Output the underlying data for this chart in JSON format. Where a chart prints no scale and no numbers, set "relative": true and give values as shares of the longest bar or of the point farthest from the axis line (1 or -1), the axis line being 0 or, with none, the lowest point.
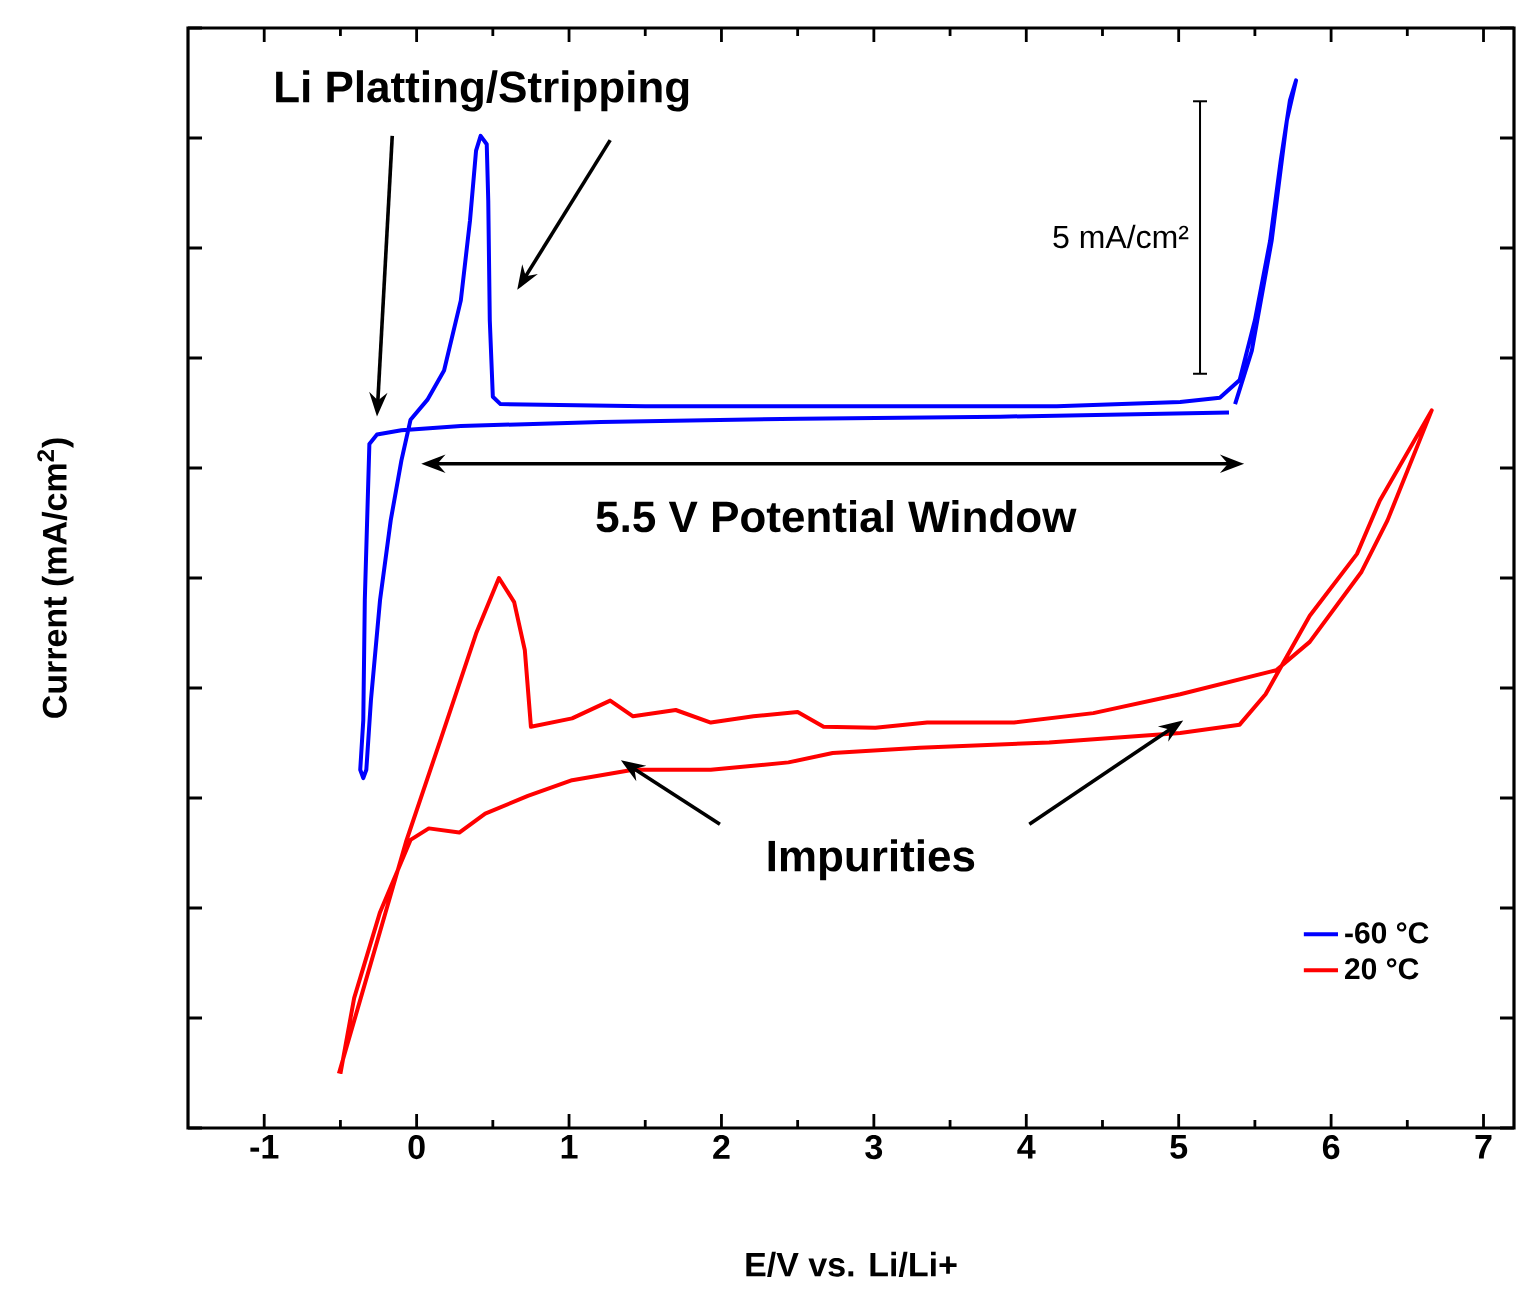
{
  "chart_data": {
    "type": "line",
    "xlabel": "E/V vs. Li/Li+",
    "ylabel": "Current (mA/cm$^{2}$)",
    "relative": true,
    "xlim": [
      -1.5,
      7.2
    ],
    "xticks": [
      -1,
      0,
      1,
      2,
      3,
      4,
      5,
      6,
      7
    ],
    "legend": "bottom right",
    "annotations": [
      "Li Platting/Stripping",
      "5 mA/cm²",
      "5.5 V Potential Window",
      "Impurities"
    ],
    "series": [
      {
        "name": "-60 °C",
        "color": "#0000ff",
        "x": [
          5.33,
          3.83,
          2.52,
          1.21,
          0.29,
          -0.1,
          -0.26,
          -0.31,
          -0.34,
          -0.35,
          -0.37,
          -0.35,
          -0.33,
          -0.3,
          -0.24,
          -0.17,
          -0.1,
          -0.04,
          0.07,
          0.18,
          0.29,
          0.35,
          0.39,
          0.42,
          0.46,
          0.47,
          0.48,
          0.5,
          0.55,
          1.5,
          3.0,
          4.2,
          5.01,
          5.27,
          5.4,
          5.5,
          5.6,
          5.67,
          5.73,
          5.77,
          5.71,
          5.61,
          5.48,
          5.37
        ],
        "values": [
          0.683,
          0.679,
          0.677,
          0.674,
          0.67,
          0.666,
          0.662,
          0.653,
          0.504,
          0.389,
          0.342,
          0.334,
          0.342,
          0.408,
          0.504,
          0.58,
          0.637,
          0.676,
          0.695,
          0.723,
          0.79,
          0.866,
          0.933,
          0.947,
          0.939,
          0.885,
          0.771,
          0.698,
          0.691,
          0.689,
          0.689,
          0.689,
          0.693,
          0.697,
          0.714,
          0.771,
          0.847,
          0.924,
          0.981,
          1.0,
          0.962,
          0.847,
          0.742,
          0.691
        ]
      },
      {
        "name": "20 °C",
        "color": "#ff0000",
        "x": [
          -0.51,
          -0.07,
          0.16,
          0.39,
          0.54,
          0.64,
          0.71,
          0.75,
          1.02,
          1.27,
          1.42,
          1.7,
          1.93,
          2.21,
          2.5,
          2.67,
          3.01,
          3.35,
          3.92,
          4.44,
          5.01,
          5.64,
          5.86,
          6.2,
          6.37,
          6.66,
          6.32,
          6.17,
          5.86,
          5.57,
          5.4,
          5.01,
          4.15,
          3.3,
          2.73,
          2.44,
          1.93,
          1.42,
          1.02,
          0.73,
          0.45,
          0.28,
          0.08,
          -0.04,
          -0.24,
          -0.41,
          -0.5
        ],
        "values": [
          0.052,
          0.273,
          0.372,
          0.472,
          0.525,
          0.502,
          0.456,
          0.383,
          0.391,
          0.408,
          0.393,
          0.399,
          0.387,
          0.393,
          0.397,
          0.383,
          0.382,
          0.387,
          0.387,
          0.396,
          0.414,
          0.437,
          0.464,
          0.531,
          0.58,
          0.685,
          0.599,
          0.548,
          0.489,
          0.414,
          0.385,
          0.377,
          0.368,
          0.363,
          0.358,
          0.349,
          0.342,
          0.342,
          0.332,
          0.317,
          0.3,
          0.282,
          0.286,
          0.275,
          0.206,
          0.124,
          0.052
        ]
      }
    ]
  }
}
